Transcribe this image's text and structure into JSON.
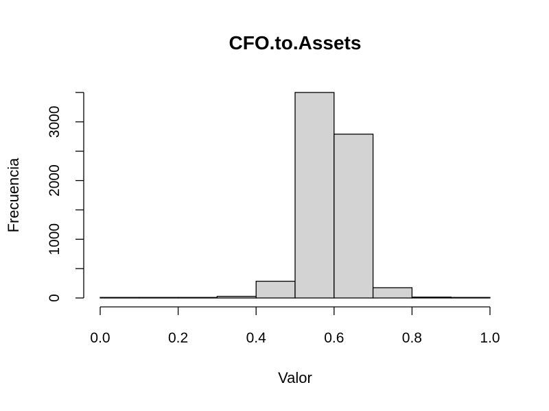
{
  "chart_data": {
    "type": "bar",
    "title": "CFO.to.Assets",
    "xlabel": "Valor",
    "ylabel": "Frecuencia",
    "bins": [
      {
        "x0": 0.0,
        "x1": 0.1,
        "count": 1
      },
      {
        "x0": 0.1,
        "x1": 0.2,
        "count": 2
      },
      {
        "x0": 0.2,
        "x1": 0.3,
        "count": 8
      },
      {
        "x0": 0.3,
        "x1": 0.4,
        "count": 28
      },
      {
        "x0": 0.4,
        "x1": 0.5,
        "count": 285
      },
      {
        "x0": 0.5,
        "x1": 0.6,
        "count": 3500
      },
      {
        "x0": 0.6,
        "x1": 0.7,
        "count": 2790
      },
      {
        "x0": 0.7,
        "x1": 0.8,
        "count": 175
      },
      {
        "x0": 0.8,
        "x1": 0.9,
        "count": 15
      },
      {
        "x0": 0.9,
        "x1": 1.0,
        "count": 8
      }
    ],
    "xlim": [
      0.0,
      1.0
    ],
    "ylim": [
      0,
      3500
    ],
    "x_ticks": [
      "0.0",
      "0.2",
      "0.4",
      "0.6",
      "0.8",
      "1.0"
    ],
    "y_ticks": [
      "0",
      "1000",
      "2000",
      "3000"
    ],
    "bar_color": "#d3d3d3",
    "edge_color": "#000000",
    "grid": false
  }
}
